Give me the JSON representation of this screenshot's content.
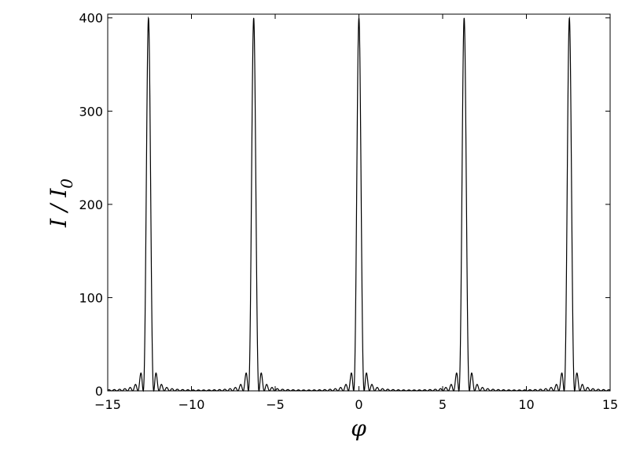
{
  "chart_data": {
    "type": "line",
    "title": "",
    "xlabel": "φ",
    "ylabel_main": "I / I",
    "ylabel_sub": "0",
    "xlim": [
      -15,
      15
    ],
    "ylim": [
      0,
      404
    ],
    "xticks": [
      -15,
      -10,
      -5,
      0,
      5,
      10,
      15
    ],
    "xtick_labels": [
      "−15",
      "−10",
      "−5",
      "0",
      "5",
      "10",
      "15"
    ],
    "yticks": [
      0,
      100,
      200,
      300,
      400
    ],
    "ytick_labels": [
      "0",
      "100",
      "200",
      "300",
      "400"
    ],
    "grid": false,
    "series": [
      {
        "function": "(sin(N·φ/2) / sin(φ/2))^2",
        "N": 20,
        "principal_peak_value": 400,
        "principal_peaks_at": [
          -12.57,
          -6.28,
          0,
          6.28,
          12.57
        ],
        "color": "#000000"
      }
    ]
  }
}
